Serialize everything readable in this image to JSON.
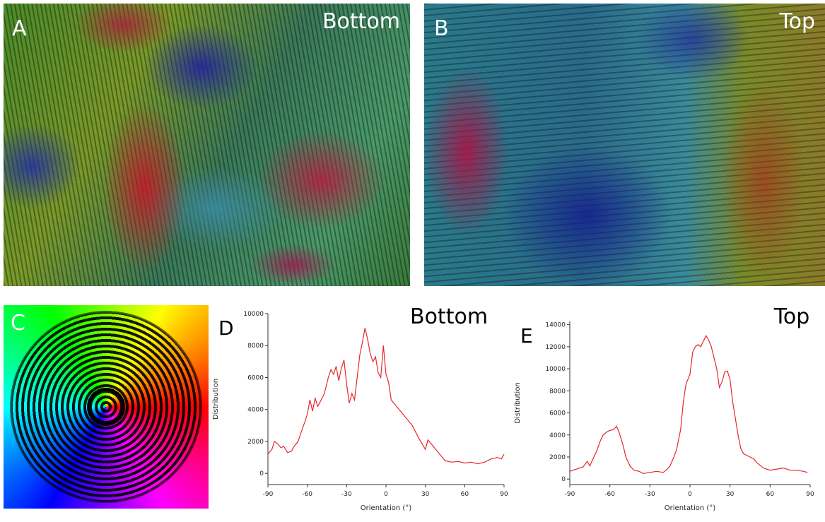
{
  "panels": {
    "a": {
      "label": "A",
      "caption": "Bottom"
    },
    "b": {
      "label": "B",
      "caption": "Top"
    },
    "c": {
      "label": "C"
    }
  },
  "chart_data": [
    {
      "type": "line",
      "label": "D",
      "title": "Bottom",
      "x_label": "Orientation (°)",
      "y_label": "Distribution",
      "color": "#e8262a",
      "x": [
        -90,
        -87,
        -85,
        -82,
        -80,
        -78,
        -75,
        -72,
        -70,
        -67,
        -65,
        -62,
        -60,
        -58,
        -56,
        -54,
        -52,
        -50,
        -47,
        -44,
        -42,
        -40,
        -38,
        -36,
        -34,
        -32,
        -30,
        -28,
        -26,
        -24,
        -22,
        -20,
        -18,
        -16,
        -14,
        -12,
        -10,
        -8,
        -6,
        -4,
        -2,
        0,
        2,
        4,
        6,
        10,
        15,
        20,
        25,
        30,
        32,
        35,
        40,
        45,
        50,
        55,
        60,
        65,
        70,
        75,
        80,
        85,
        88,
        90
      ],
      "values": [
        1200,
        1500,
        2000,
        1800,
        1600,
        1700,
        1300,
        1400,
        1700,
        2000,
        2500,
        3200,
        3700,
        4600,
        3900,
        4700,
        4200,
        4500,
        5000,
        6000,
        6500,
        6200,
        6700,
        5800,
        6600,
        7100,
        5600,
        4400,
        5000,
        4600,
        6000,
        7400,
        8200,
        9100,
        8400,
        7500,
        7000,
        7300,
        6300,
        6000,
        8000,
        6200,
        5700,
        4600,
        4400,
        4000,
        3500,
        3000,
        2200,
        1500,
        2100,
        1800,
        1300,
        800,
        700,
        750,
        650,
        700,
        600,
        700,
        900,
        1000,
        900,
        1200
      ],
      "xlim": [
        -90,
        90
      ],
      "xticks": [
        -90,
        -60,
        -30,
        0,
        30,
        60,
        90
      ],
      "ylim": [
        -700,
        10000
      ],
      "yticks": [
        0,
        2000,
        4000,
        6000,
        8000,
        10000
      ]
    },
    {
      "type": "line",
      "label": "E",
      "title": "Top",
      "x_label": "Orientation (°)",
      "y_label": "Distribution",
      "color": "#e8262a",
      "x": [
        -90,
        -85,
        -80,
        -77,
        -75,
        -72,
        -70,
        -67,
        -65,
        -62,
        -60,
        -57,
        -55,
        -53,
        -50,
        -48,
        -45,
        -42,
        -38,
        -35,
        -30,
        -25,
        -20,
        -17,
        -15,
        -12,
        -10,
        -7,
        -5,
        -3,
        0,
        2,
        4,
        6,
        8,
        10,
        12,
        14,
        16,
        18,
        20,
        22,
        24,
        26,
        28,
        30,
        32,
        34,
        36,
        38,
        40,
        45,
        48,
        50,
        55,
        60,
        65,
        70,
        75,
        80,
        85,
        88
      ],
      "values": [
        700,
        900,
        1100,
        1600,
        1200,
        2000,
        2500,
        3500,
        4000,
        4300,
        4400,
        4500,
        4800,
        4200,
        3000,
        2000,
        1200,
        800,
        700,
        500,
        600,
        700,
        600,
        900,
        1200,
        2000,
        2700,
        4500,
        7000,
        8600,
        9500,
        11500,
        12000,
        12200,
        12000,
        12500,
        13000,
        12600,
        12000,
        11000,
        10000,
        8300,
        8800,
        9700,
        9800,
        9000,
        7000,
        5500,
        4000,
        2800,
        2300,
        2000,
        1800,
        1500,
        1000,
        800,
        900,
        1000,
        800,
        800,
        700,
        600
      ],
      "xlim": [
        -90,
        90
      ],
      "xticks": [
        -90,
        -60,
        -30,
        0,
        30,
        60,
        90
      ],
      "ylim": [
        -500,
        14300
      ],
      "yticks": [
        0,
        2000,
        4000,
        6000,
        8000,
        10000,
        12000,
        14000
      ]
    }
  ]
}
